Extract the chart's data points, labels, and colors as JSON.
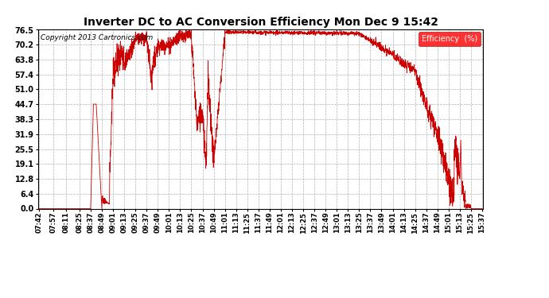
{
  "title": "Inverter DC to AC Conversion Efficiency Mon Dec 9 15:42",
  "copyright": "Copyright 2013 Cartronics.com",
  "legend_label": "Efficiency  (%)",
  "line_color": "#cc0000",
  "background_color": "#ffffff",
  "grid_color": "#b0b0b0",
  "ylim": [
    0.0,
    76.5
  ],
  "yticks": [
    0.0,
    6.4,
    12.8,
    19.1,
    25.5,
    31.9,
    38.3,
    44.7,
    51.0,
    57.4,
    63.8,
    70.2,
    76.5
  ],
  "xtick_labels": [
    "07:42",
    "07:57",
    "08:11",
    "08:25",
    "08:37",
    "08:49",
    "09:01",
    "09:13",
    "09:25",
    "09:37",
    "09:49",
    "10:01",
    "10:13",
    "10:25",
    "10:37",
    "10:49",
    "11:01",
    "11:13",
    "11:25",
    "11:37",
    "11:49",
    "12:01",
    "12:13",
    "12:25",
    "12:37",
    "12:49",
    "13:01",
    "13:13",
    "13:25",
    "13:37",
    "13:49",
    "14:01",
    "14:13",
    "14:25",
    "14:37",
    "14:49",
    "15:01",
    "15:13",
    "15:25",
    "15:37"
  ]
}
